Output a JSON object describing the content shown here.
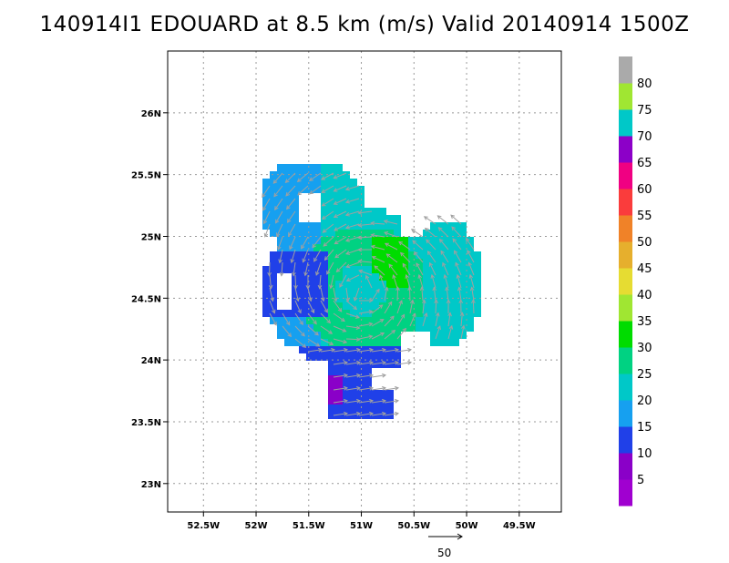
{
  "title": "140914I1 EDOUARD at 8.5 km (m/s) Valid 20140914 1500Z",
  "map": {
    "x_ticks": [
      "52.5W",
      "52W",
      "51.5W",
      "51W",
      "50.5W",
      "50W",
      "49.5W"
    ],
    "y_ticks": [
      "26N",
      "25.5N",
      "25N",
      "24.5N",
      "24N",
      "23.5N",
      "23N"
    ],
    "x_values": [
      -52.5,
      -52.0,
      -51.5,
      -51.0,
      -50.5,
      -50.0,
      -49.5
    ],
    "y_values": [
      26.0,
      25.5,
      25.0,
      24.5,
      24.0,
      23.5,
      23.0
    ],
    "lon_range": [
      -52.84,
      -49.1
    ],
    "lat_range": [
      22.77,
      26.5
    ],
    "grid": true,
    "grid_style": "dotted"
  },
  "colorbar": {
    "labels": [
      "5",
      "10",
      "15",
      "20",
      "25",
      "30",
      "35",
      "40",
      "45",
      "50",
      "55",
      "60",
      "65",
      "70",
      "75",
      "80"
    ],
    "colors": [
      "#a000d0",
      "#8a00c8",
      "#2040e8",
      "#16a0f0",
      "#00c8c8",
      "#00d282",
      "#00dc00",
      "#a0e632",
      "#e6dc32",
      "#e6af2d",
      "#f08228",
      "#fa3c3c",
      "#f00082",
      "#8c00c8",
      "#00c8c8",
      "#a0e632",
      "#aaaaaa"
    ]
  },
  "reference_vector": {
    "label": "50"
  },
  "colors": {
    "wind_vector": "#a0a0a0",
    "grid": "#999999"
  }
}
